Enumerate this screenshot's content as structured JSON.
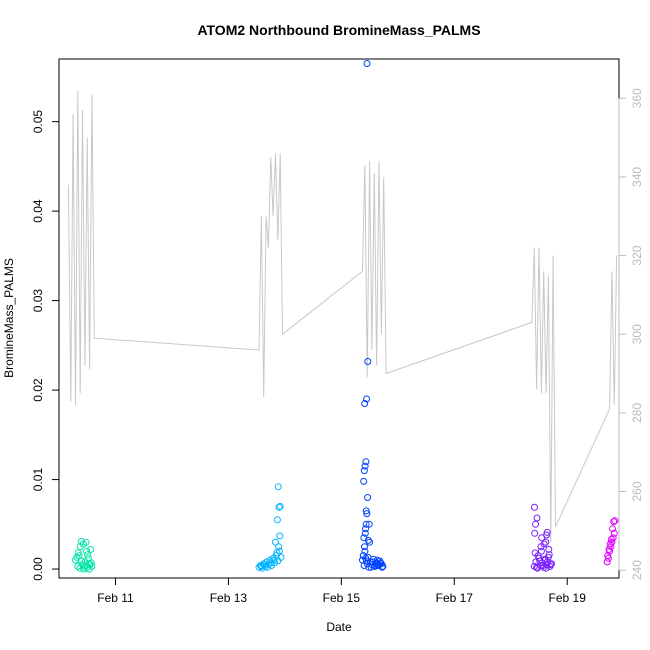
{
  "chart_data": {
    "type": "scatter",
    "title": "ATOM2 Northbound BromineMass_PALMS",
    "xlabel": "Date",
    "ylabel": "BromineMass_PALMS",
    "xlim": [
      "2017-02-10 00:00",
      "2017-02-19 22:00"
    ],
    "ylim": [
      -0.001,
      0.057
    ],
    "x_ticks": [
      "Feb 11",
      "Feb 13",
      "Feb 15",
      "Feb 17",
      "Feb 19"
    ],
    "x_tick_dates": [
      "2017-02-11",
      "2017-02-13",
      "2017-02-15",
      "2017-02-17",
      "2017-02-19"
    ],
    "y_ticks": [
      "0.00",
      "0.01",
      "0.02",
      "0.03",
      "0.04",
      "0.05"
    ],
    "y_tick_values": [
      0,
      0.01,
      0.02,
      0.03,
      0.04,
      0.05
    ],
    "y2_ticks": [
      "240",
      "260",
      "280",
      "300",
      "320",
      "340",
      "360"
    ],
    "y2_tick_values": [
      240,
      260,
      280,
      300,
      320,
      340,
      360
    ],
    "y2lim": [
      238,
      370
    ],
    "grid": false,
    "legend": "none",
    "colors": {
      "line": "#c8c8c8",
      "axis": "#000000",
      "axis_right": "#bbbbbb",
      "flights": [
        "#00e6a8",
        "#00b4ff",
        "#0040ff",
        "#7a1fff",
        "#e000ff"
      ]
    },
    "series": [
      {
        "color": "#00e6a8",
        "x": [
          "2017-02-10 07:00",
          "2017-02-10 08:00",
          "2017-02-10 08:30",
          "2017-02-10 09:00",
          "2017-02-10 09:30",
          "2017-02-10 10:00",
          "2017-02-10 10:30",
          "2017-02-10 11:00",
          "2017-02-10 11:30",
          "2017-02-10 12:00",
          "2017-02-10 12:30",
          "2017-02-10 13:00",
          "2017-02-10 13:30",
          "2017-02-10 14:00",
          "2017-02-10 08:10",
          "2017-02-10 08:50",
          "2017-02-10 09:40",
          "2017-02-10 10:20",
          "2017-02-10 11:10",
          "2017-02-10 12:10",
          "2017-02-10 12:50",
          "2017-02-10 13:40",
          "2017-02-10 07:40",
          "2017-02-10 10:50",
          "2017-02-10 11:40",
          "2017-02-10 13:10"
        ],
        "y": [
          0.001,
          0.0003,
          0.0015,
          0.0025,
          0.0031,
          0.0005,
          0.0,
          0.0008,
          0.003,
          0.0002,
          0.0012,
          0.0006,
          0.0022,
          0.0003,
          0.0018,
          0.0001,
          0.0009,
          0.0028,
          0.0004,
          0.0016,
          0.0,
          0.0007,
          0.0013,
          0.0002,
          0.002,
          0.0005
        ]
      },
      {
        "color": "#00b4ff",
        "x": [
          "2017-02-13 13:00",
          "2017-02-13 13:40",
          "2017-02-13 14:20",
          "2017-02-13 15:00",
          "2017-02-13 15:40",
          "2017-02-13 16:20",
          "2017-02-13 17:00",
          "2017-02-13 17:40",
          "2017-02-13 18:20",
          "2017-02-13 19:00",
          "2017-02-13 19:40",
          "2017-02-13 20:20",
          "2017-02-13 21:00",
          "2017-02-13 21:40",
          "2017-02-13 22:20",
          "2017-02-13 14:00",
          "2017-02-13 15:20",
          "2017-02-13 16:40",
          "2017-02-13 18:00",
          "2017-02-13 19:20",
          "2017-02-13 20:40",
          "2017-02-13 21:20",
          "2017-02-13 20:00",
          "2017-02-13 21:50",
          "2017-02-13 20:50",
          "2017-02-13 22:00",
          "2017-02-13 21:30",
          "2017-02-13 21:10"
        ],
        "y": [
          0.0002,
          0.0004,
          0.0001,
          0.0006,
          0.0003,
          0.0008,
          0.0005,
          0.001,
          0.0004,
          0.0012,
          0.0007,
          0.0015,
          0.0009,
          0.002,
          0.0013,
          0.0003,
          0.0005,
          0.0002,
          0.0007,
          0.001,
          0.0018,
          0.0025,
          0.003,
          0.0037,
          0.0055,
          0.007,
          0.0069,
          0.0092
        ]
      },
      {
        "color": "#0040ff",
        "x": [
          "2017-02-15 09:00",
          "2017-02-15 09:40",
          "2017-02-15 10:20",
          "2017-02-15 11:00",
          "2017-02-15 11:40",
          "2017-02-15 12:20",
          "2017-02-15 13:00",
          "2017-02-15 13:40",
          "2017-02-15 14:20",
          "2017-02-15 15:00",
          "2017-02-15 15:40",
          "2017-02-15 16:20",
          "2017-02-15 17:00",
          "2017-02-15 17:40",
          "2017-02-15 09:20",
          "2017-02-15 10:00",
          "2017-02-15 10:40",
          "2017-02-15 11:20",
          "2017-02-15 12:00",
          "2017-02-15 12:40",
          "2017-02-15 13:20",
          "2017-02-15 14:00",
          "2017-02-15 14:40",
          "2017-02-15 15:20",
          "2017-02-15 16:00",
          "2017-02-15 16:40",
          "2017-02-15 17:20",
          "2017-02-15 09:50",
          "2017-02-15 10:10",
          "2017-02-15 10:30",
          "2017-02-15 10:50",
          "2017-02-15 11:10",
          "2017-02-15 11:30",
          "2017-02-15 09:30",
          "2017-02-15 09:45",
          "2017-02-15 10:05",
          "2017-02-15 10:25",
          "2017-02-15 10:35",
          "2017-02-15 11:50",
          "2017-02-15 09:55",
          "2017-02-15 10:45",
          "2017-02-15 11:15",
          "2017-02-15 10:15",
          "2017-02-15 09:35",
          "2017-02-15 10:55"
        ],
        "y": [
          0.001,
          0.0004,
          0.0012,
          0.0006,
          0.0002,
          0.0008,
          0.0005,
          0.0011,
          0.0003,
          0.0007,
          0.0004,
          0.0009,
          0.0006,
          0.0003,
          0.0015,
          0.002,
          0.0009,
          0.0013,
          0.003,
          0.0002,
          0.0008,
          0.0004,
          0.0006,
          0.001,
          0.0005,
          0.0007,
          0.0002,
          0.0025,
          0.004,
          0.005,
          0.0062,
          0.008,
          0.0032,
          0.0098,
          0.011,
          0.0115,
          0.012,
          0.0065,
          0.005,
          0.0185,
          0.019,
          0.0232,
          0.0045,
          0.0035,
          0.0565
        ]
      },
      {
        "color": "#7a1fff",
        "x": [
          "2017-02-18 10:00",
          "2017-02-18 10:40",
          "2017-02-18 11:20",
          "2017-02-18 12:00",
          "2017-02-18 12:40",
          "2017-02-18 13:20",
          "2017-02-18 14:00",
          "2017-02-18 14:40",
          "2017-02-18 15:20",
          "2017-02-18 16:00",
          "2017-02-18 16:40",
          "2017-02-18 17:20",
          "2017-02-18 10:20",
          "2017-02-18 11:00",
          "2017-02-18 11:40",
          "2017-02-18 12:20",
          "2017-02-18 13:00",
          "2017-02-18 13:40",
          "2017-02-18 14:20",
          "2017-02-18 15:00",
          "2017-02-18 15:40",
          "2017-02-18 16:20",
          "2017-02-18 17:00",
          "2017-02-18 10:10",
          "2017-02-18 10:30",
          "2017-02-18 10:05",
          "2017-02-18 12:50",
          "2017-02-18 14:50",
          "2017-02-18 13:10",
          "2017-02-18 15:10",
          "2017-02-18 14:10",
          "2017-02-18 16:10",
          "2017-02-18 11:10",
          "2017-02-18 15:30"
        ],
        "y": [
          0.0003,
          0.0008,
          0.0001,
          0.0012,
          0.0004,
          0.0007,
          0.0002,
          0.001,
          0.0005,
          0.0013,
          0.0003,
          0.0006,
          0.0018,
          0.0002,
          0.0015,
          0.0009,
          0.002,
          0.0004,
          0.0011,
          0.0001,
          0.0008,
          0.0016,
          0.0005,
          0.004,
          0.005,
          0.0069,
          0.0025,
          0.003,
          0.0035,
          0.0038,
          0.0028,
          0.0022,
          0.0057,
          0.0041
        ]
      },
      {
        "color": "#e000ff",
        "x": [
          "2017-02-19 17:00",
          "2017-02-19 17:30",
          "2017-02-19 18:00",
          "2017-02-19 18:30",
          "2017-02-19 19:00",
          "2017-02-19 19:30",
          "2017-02-19 20:00",
          "2017-02-19 17:15",
          "2017-02-19 17:45",
          "2017-02-19 18:15",
          "2017-02-19 18:45",
          "2017-02-19 19:15",
          "2017-02-19 19:45",
          "2017-02-19 20:15"
        ],
        "y": [
          0.0008,
          0.0012,
          0.002,
          0.0025,
          0.003,
          0.0035,
          0.004,
          0.0015,
          0.0022,
          0.0028,
          0.0033,
          0.0045,
          0.0053,
          0.0054
        ]
      }
    ],
    "secondary_line": {
      "axis": "right",
      "x": [
        "2017-02-10 04:00",
        "2017-02-10 05:00",
        "2017-02-10 06:00",
        "2017-02-10 07:00",
        "2017-02-10 08:00",
        "2017-02-10 09:00",
        "2017-02-10 10:00",
        "2017-02-10 11:00",
        "2017-02-10 12:00",
        "2017-02-10 13:00",
        "2017-02-10 14:00",
        "2017-02-10 15:00",
        "2017-02-13 13:00",
        "2017-02-13 14:00",
        "2017-02-13 15:00",
        "2017-02-13 16:00",
        "2017-02-13 17:00",
        "2017-02-13 18:00",
        "2017-02-13 19:00",
        "2017-02-13 20:00",
        "2017-02-13 21:00",
        "2017-02-13 22:00",
        "2017-02-13 23:00",
        "2017-02-15 09:00",
        "2017-02-15 10:00",
        "2017-02-15 11:00",
        "2017-02-15 12:00",
        "2017-02-15 13:00",
        "2017-02-15 14:00",
        "2017-02-15 15:00",
        "2017-02-15 16:00",
        "2017-02-15 17:00",
        "2017-02-15 18:00",
        "2017-02-15 19:00",
        "2017-02-18 09:00",
        "2017-02-18 10:00",
        "2017-02-18 11:00",
        "2017-02-18 12:00",
        "2017-02-18 13:00",
        "2017-02-18 14:00",
        "2017-02-18 15:00",
        "2017-02-18 16:00",
        "2017-02-18 17:00",
        "2017-02-18 18:00",
        "2017-02-18 19:00",
        "2017-02-19 18:00",
        "2017-02-19 19:00",
        "2017-02-19 20:00",
        "2017-02-19 21:00"
      ],
      "y": [
        338,
        283,
        356,
        282,
        362,
        285,
        357,
        292,
        350,
        291,
        361,
        299,
        296,
        330,
        284,
        330,
        322,
        345,
        330,
        346,
        324,
        346,
        300,
        316,
        343,
        289,
        344,
        296,
        341,
        292,
        344,
        300,
        340,
        290,
        303,
        322,
        286,
        322,
        285,
        316,
        285,
        315,
        247,
        320,
        251,
        281,
        316,
        282,
        320
      ]
    }
  }
}
